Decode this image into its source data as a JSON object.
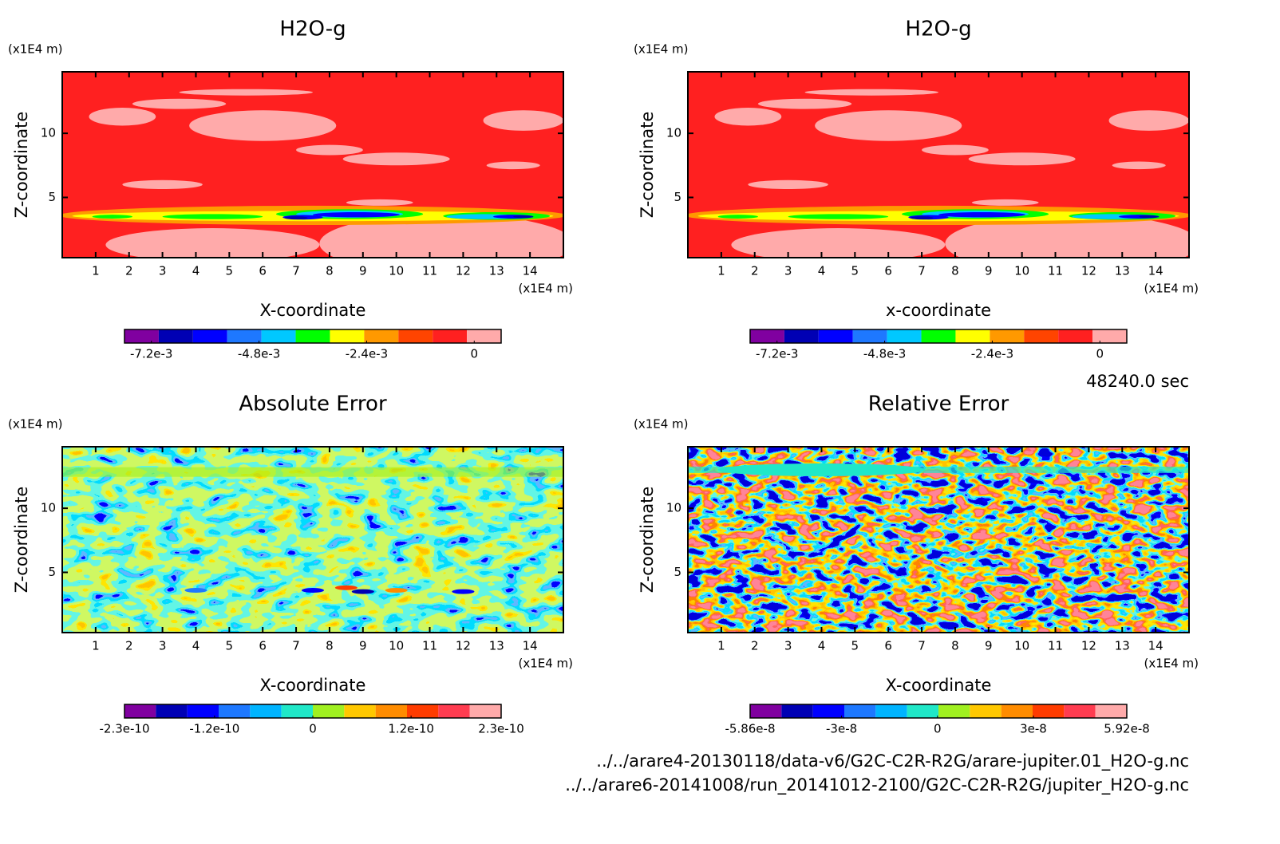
{
  "chart_data": [
    {
      "type": "contour",
      "title": "H2O-g",
      "xlabel": "X-coordinate",
      "ylabel": "Z-coordinate",
      "xunit": "(x1E4 m)",
      "yunit": "(x1E4 m)",
      "xlim": [
        0,
        15
      ],
      "ylim": [
        0.3,
        14.8
      ],
      "xticks": [
        1,
        2,
        3,
        4,
        5,
        6,
        7,
        8,
        9,
        10,
        11,
        12,
        13,
        14
      ],
      "yticks": [
        5,
        10
      ],
      "colorbar": {
        "colors": [
          "#8000a0",
          "#0000b4",
          "#0000ff",
          "#1e78ff",
          "#00c8ff",
          "#00ff00",
          "#ffff00",
          "#ff9900",
          "#ff4400",
          "#ff2020",
          "#ffaaaa"
        ],
        "lim": [
          -0.0078,
          0.0006
        ],
        "ticks": [
          {
            "value": -0.0072,
            "label": "-7.2e-3"
          },
          {
            "value": -0.0048,
            "label": "-4.8e-3"
          },
          {
            "value": -0.0024,
            "label": "-2.4e-3"
          },
          0
        ]
      }
    },
    {
      "type": "contour",
      "title": "H2O-g",
      "xlabel": "x-coordinate",
      "ylabel": "Z-coordinate",
      "xunit": "(x1E4 m)",
      "yunit": "(x1E4 m)",
      "xlim": [
        0,
        15
      ],
      "ylim": [
        0.3,
        14.8
      ],
      "xticks": [
        1,
        2,
        3,
        4,
        5,
        6,
        7,
        8,
        9,
        10,
        11,
        12,
        13,
        14
      ],
      "yticks": [
        5,
        10
      ],
      "colorbar": {
        "colors": [
          "#8000a0",
          "#0000b4",
          "#0000ff",
          "#1e78ff",
          "#00c8ff",
          "#00ff00",
          "#ffff00",
          "#ff9900",
          "#ff4400",
          "#ff2020",
          "#ffaaaa"
        ],
        "lim": [
          -0.0078,
          0.0006
        ],
        "ticks": [
          {
            "value": -0.0072,
            "label": "-7.2e-3"
          },
          {
            "value": -0.0048,
            "label": "-4.8e-3"
          },
          {
            "value": -0.0024,
            "label": "-2.4e-3"
          },
          0
        ]
      }
    },
    {
      "type": "contour",
      "title": "Absolute Error",
      "xlabel": "X-coordinate",
      "ylabel": "Z-coordinate",
      "xunit": "(x1E4 m)",
      "yunit": "(x1E4 m)",
      "xlim": [
        0,
        15
      ],
      "ylim": [
        0.3,
        14.8
      ],
      "xticks": [
        1,
        2,
        3,
        4,
        5,
        6,
        7,
        8,
        9,
        10,
        11,
        12,
        13,
        14
      ],
      "yticks": [
        5,
        10
      ],
      "colorbar": {
        "colors": [
          "#8000a0",
          "#0000b4",
          "#0000ff",
          "#1e78ff",
          "#00b4ff",
          "#20e8c8",
          "#a0f020",
          "#ffc800",
          "#ff8c00",
          "#ff3c00",
          "#ff3c50",
          "#ffaaaa"
        ],
        "lim": [
          -2.3e-10,
          2.3e-10
        ],
        "ticks": [
          {
            "value": -2.3e-10,
            "label": "-2.3e-10"
          },
          {
            "value": -1.2e-10,
            "label": "-1.2e-10"
          },
          0,
          {
            "value": 1.2e-10,
            "label": "1.2e-10"
          },
          {
            "value": 2.3e-10,
            "label": "2.3e-10"
          }
        ]
      }
    },
    {
      "type": "contour",
      "title": "Relative Error",
      "xlabel": "X-coordinate",
      "ylabel": "Z-coordinate",
      "xunit": "(x1E4 m)",
      "yunit": "(x1E4 m)",
      "xlim": [
        0,
        15
      ],
      "ylim": [
        0.3,
        14.8
      ],
      "xticks": [
        1,
        2,
        3,
        4,
        5,
        6,
        7,
        8,
        9,
        10,
        11,
        12,
        13,
        14
      ],
      "yticks": [
        5,
        10
      ],
      "colorbar": {
        "colors": [
          "#8000a0",
          "#0000b4",
          "#0000ff",
          "#1e78ff",
          "#00b4ff",
          "#20e8c8",
          "#a0f020",
          "#ffc800",
          "#ff8c00",
          "#ff3c00",
          "#ff3c50",
          "#ffaaaa"
        ],
        "lim": [
          -5.86e-08,
          5.92e-08
        ],
        "ticks": [
          {
            "value": -5.86e-08,
            "label": "-5.86e-8"
          },
          {
            "value": -3e-08,
            "label": "-3e-8"
          },
          0,
          {
            "value": 3e-08,
            "label": "3e-8"
          },
          {
            "value": 5.92e-08,
            "label": "5.92e-8"
          }
        ]
      }
    }
  ],
  "time": "48240.0 sec",
  "files": [
    "../../arare4-20130118/data-v6/G2C-C2R-R2G/arare-jupiter.01_H2O-g.nc",
    "../../arare6-20141008/run_20141012-2100/G2C-C2R-R2G/jupiter_H2O-g.nc"
  ]
}
